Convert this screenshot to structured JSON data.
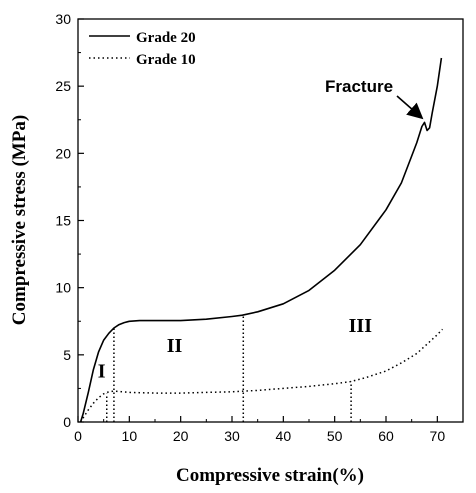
{
  "chart_data": {
    "type": "line",
    "title": "",
    "xlabel": "Compressive strain(%)",
    "ylabel": "Compressive stress (MPa)",
    "xlim": [
      0,
      75
    ],
    "ylim": [
      0,
      30
    ],
    "xticks": [
      0,
      10,
      20,
      30,
      40,
      50,
      60,
      70
    ],
    "yticks": [
      0,
      5,
      10,
      15,
      20,
      25,
      30
    ],
    "grid": false,
    "legend_position": "top-left",
    "series": [
      {
        "name": "Grade 20",
        "style": "solid",
        "color": "#000000",
        "points": [
          [
            0.5,
            0
          ],
          [
            1,
            0.6
          ],
          [
            2,
            2.2
          ],
          [
            3,
            3.9
          ],
          [
            4,
            5.2
          ],
          [
            5,
            6.1
          ],
          [
            6,
            6.6
          ],
          [
            7,
            7.0
          ],
          [
            8,
            7.25
          ],
          [
            9,
            7.4
          ],
          [
            10,
            7.5
          ],
          [
            12,
            7.55
          ],
          [
            15,
            7.55
          ],
          [
            20,
            7.55
          ],
          [
            25,
            7.65
          ],
          [
            30,
            7.85
          ],
          [
            32,
            7.95
          ],
          [
            35,
            8.2
          ],
          [
            40,
            8.8
          ],
          [
            45,
            9.8
          ],
          [
            50,
            11.3
          ],
          [
            55,
            13.2
          ],
          [
            60,
            15.8
          ],
          [
            63,
            17.8
          ],
          [
            65,
            19.8
          ],
          [
            66,
            20.8
          ],
          [
            67,
            22.0
          ],
          [
            67.5,
            22.3
          ],
          [
            68,
            21.7
          ],
          [
            68.5,
            21.9
          ],
          [
            69,
            23.0
          ],
          [
            70,
            25.0
          ],
          [
            70.8,
            27.1
          ]
        ]
      },
      {
        "name": "Grade 10",
        "style": "dotted",
        "color": "#000000",
        "points": [
          [
            0.5,
            0
          ],
          [
            1,
            0.3
          ],
          [
            2,
            0.9
          ],
          [
            3,
            1.4
          ],
          [
            4,
            1.8
          ],
          [
            5,
            2.1
          ],
          [
            6,
            2.25
          ],
          [
            7,
            2.3
          ],
          [
            10,
            2.2
          ],
          [
            15,
            2.15
          ],
          [
            20,
            2.15
          ],
          [
            25,
            2.2
          ],
          [
            30,
            2.25
          ],
          [
            35,
            2.35
          ],
          [
            40,
            2.5
          ],
          [
            45,
            2.65
          ],
          [
            50,
            2.85
          ],
          [
            53,
            3.0
          ],
          [
            56,
            3.3
          ],
          [
            60,
            3.8
          ],
          [
            63,
            4.4
          ],
          [
            66,
            5.1
          ],
          [
            68,
            5.8
          ],
          [
            70,
            6.5
          ],
          [
            71,
            6.9
          ]
        ]
      }
    ],
    "region_dividers": [
      {
        "x": 5.6,
        "y_top": 2.1
      },
      {
        "x": 7.0,
        "y_top": 7.0
      },
      {
        "x": 32.2,
        "y_top": 7.95
      },
      {
        "x": 53.2,
        "y_top": 3.0
      }
    ],
    "region_labels": [
      {
        "text": "I",
        "x": 4.6,
        "y": 3.3
      },
      {
        "text": "II",
        "x": 18.8,
        "y": 5.2
      },
      {
        "text": "III",
        "x": 55.0,
        "y": 6.7
      }
    ],
    "annotations": [
      {
        "text": "Fracture",
        "target_x": 67.4,
        "target_y": 22.4
      }
    ]
  }
}
